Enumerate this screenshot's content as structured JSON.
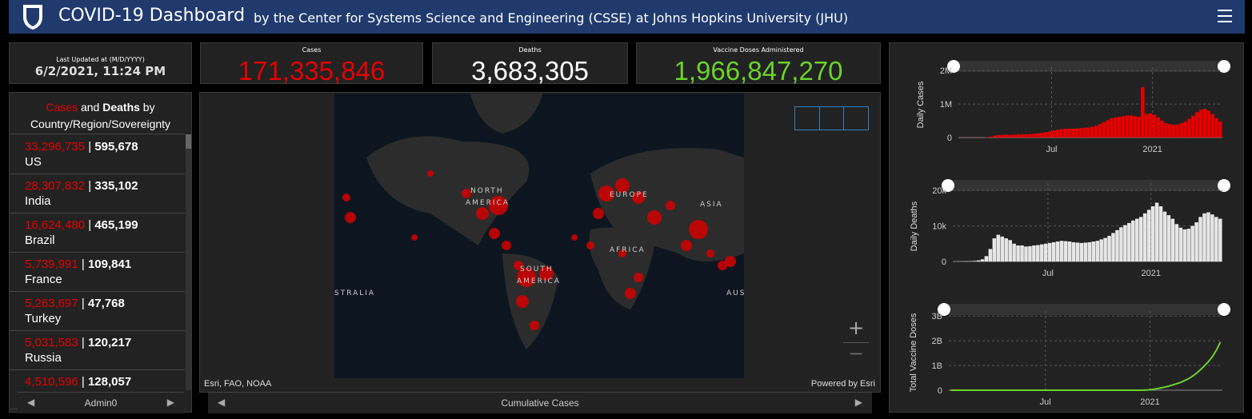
{
  "header": {
    "title": "COVID-19 Dashboard",
    "subtitle": "by the Center for Systems Science and Engineering (CSSE) at Johns Hopkins University (JHU)"
  },
  "updated": {
    "label": "Last Updated at (M/D/YYYY)",
    "value": "6/2/2021, 11:24 PM"
  },
  "stats": [
    {
      "label": "Cases",
      "value": "171,335,846"
    },
    {
      "label": "Deaths",
      "value": "3,683,305"
    },
    {
      "label": "Vaccine Doses Administered",
      "value": "1,966,847,270"
    }
  ],
  "list": {
    "heading": [
      "Cases",
      "and",
      "Deaths",
      "by",
      "Country/Region/Sovereignty"
    ],
    "items": [
      {
        "cases": "33,296,735",
        "deaths": "595,678",
        "name": "US"
      },
      {
        "cases": "28,307,832",
        "deaths": "335,102",
        "name": "India"
      },
      {
        "cases": "16,624,480",
        "deaths": "465,199",
        "name": "Brazil"
      },
      {
        "cases": "5,739,991",
        "deaths": "109,841",
        "name": "France"
      },
      {
        "cases": "5,263,697",
        "deaths": "47,768",
        "name": "Turkey"
      },
      {
        "cases": "5,031,583",
        "deaths": "120,217",
        "name": "Russia"
      },
      {
        "cases": "4,510,596",
        "deaths": "128,057"
      }
    ],
    "footer": "Admin0"
  },
  "map": {
    "labels": [
      "NORTH",
      "AMERICA",
      "EUROPE",
      "ASIA",
      "AFRICA",
      "SOUTH",
      "AMERICA",
      "STRALIA",
      "AUS"
    ],
    "attribution": "Esri, FAO, NOAA",
    "powered": "Powered by Esri",
    "footer": "Cumulative Cases"
  },
  "chart_data": [
    {
      "type": "bar",
      "y_label": "Daily Cases",
      "color": "#e60000",
      "grid": true,
      "xlim": [
        0,
        68
      ],
      "xticks": [
        {
          "value": 24,
          "label": "Jul"
        },
        {
          "value": 50,
          "label": "2021"
        }
      ],
      "ylim": [
        0,
        2100000
      ],
      "yticks": [
        0,
        {
          "value": 1000000,
          "label": "1M"
        },
        {
          "value": 2000000,
          "label": "2M"
        }
      ],
      "values": [
        1000,
        2000,
        2500,
        2500,
        2000,
        2000,
        4000,
        12000,
        30000,
        60000,
        75000,
        80000,
        82000,
        85000,
        88000,
        92000,
        95000,
        100000,
        105000,
        115000,
        125000,
        140000,
        160000,
        180000,
        210000,
        230000,
        250000,
        260000,
        265000,
        265000,
        270000,
        280000,
        290000,
        300000,
        320000,
        350000,
        400000,
        460000,
        520000,
        580000,
        600000,
        620000,
        640000,
        660000,
        660000,
        640000,
        620000,
        1500000,
        700000,
        720000,
        680000,
        600000,
        500000,
        430000,
        400000,
        380000,
        390000,
        430000,
        480000,
        560000,
        650000,
        760000,
        830000,
        860000,
        800000,
        700000,
        580000,
        480000
      ]
    },
    {
      "type": "bar",
      "y_label": "Daily Deaths",
      "color": "#e6e6e6",
      "grid": true,
      "xlim": [
        0,
        68
      ],
      "xticks": [
        {
          "value": 24,
          "label": "Jul"
        },
        {
          "value": 50,
          "label": "2021"
        }
      ],
      "ylim": [
        0,
        22000
      ],
      "yticks": [
        0,
        {
          "value": 10000,
          "label": "10k"
        },
        {
          "value": 20000,
          "label": "20k"
        }
      ],
      "values": [
        0,
        20,
        50,
        80,
        100,
        150,
        300,
        600,
        1500,
        3500,
        6500,
        7500,
        7000,
        6500,
        6000,
        5000,
        4500,
        4500,
        4200,
        4300,
        4500,
        4600,
        4800,
        5000,
        5200,
        5400,
        5600,
        5800,
        5700,
        5600,
        5400,
        5300,
        5200,
        5300,
        5400,
        5600,
        5800,
        6200,
        6600,
        7200,
        8000,
        8800,
        9600,
        10200,
        10800,
        11500,
        12000,
        12500,
        13500,
        14500,
        15500,
        16500,
        15500,
        14000,
        13000,
        12000,
        10500,
        9500,
        9000,
        9200,
        10000,
        11000,
        12500,
        13500,
        13800,
        13200,
        12500,
        12000
      ]
    },
    {
      "type": "line",
      "y_label": "Total Vaccine Doses",
      "color": "#6ad32a",
      "grid": true,
      "xlim": [
        0,
        68
      ],
      "xticks": [
        {
          "value": 24,
          "label": "Jul"
        },
        {
          "value": 50,
          "label": "2021"
        }
      ],
      "ylim": [
        0,
        3200000000
      ],
      "yticks": [
        0,
        {
          "value": 1000000000,
          "label": "1B"
        },
        {
          "value": 2000000000,
          "label": "2B"
        },
        {
          "value": 3000000000,
          "label": "3B"
        }
      ],
      "values": [
        0,
        0,
        0,
        0,
        0,
        0,
        0,
        0,
        0,
        0,
        0,
        0,
        0,
        0,
        0,
        0,
        0,
        0,
        0,
        0,
        0,
        0,
        0,
        0,
        0,
        0,
        0,
        0,
        0,
        0,
        0,
        0,
        0,
        0,
        0,
        0,
        0,
        0,
        0,
        0,
        0,
        0,
        0,
        0,
        0,
        0,
        0,
        1000000,
        3000000,
        12000000,
        30000000,
        55000000,
        85000000,
        120000000,
        160000000,
        205000000,
        255000000,
        310000000,
        380000000,
        460000000,
        560000000,
        680000000,
        820000000,
        980000000,
        1150000000,
        1350000000,
        1620000000,
        1950000000
      ]
    }
  ]
}
